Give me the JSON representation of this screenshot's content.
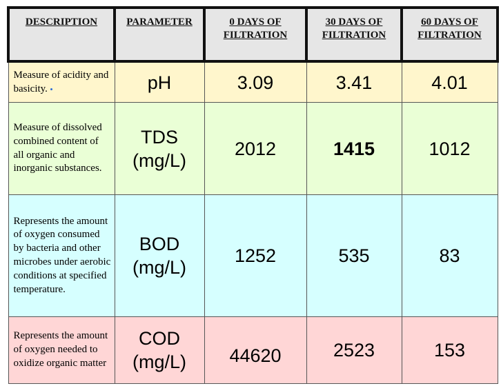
{
  "table": {
    "headers": [
      "DESCRIPTION",
      "PARAMETER",
      "0 DAYS OF FILTRATION",
      "30 DAYS OF FILTRATION",
      "60 DAYS OF FILTRATION"
    ],
    "rows": [
      {
        "description": "Measure of acidity and basicity.",
        "parameter_line1": "pH",
        "parameter_line2": "",
        "day0": "3.09",
        "day30": "3.41",
        "day60": "4.01",
        "bg": "#fff6cc"
      },
      {
        "description": "Measure of dissolved combined content of all organic and inorganic substances.",
        "parameter_line1": "TDS",
        "parameter_line2": "(mg/L)",
        "day0": "2012",
        "day30": "1415",
        "day60": "1012",
        "bg": "#eaffd6"
      },
      {
        "description": "Represents the amount of oxygen consumed by bacteria and other microbes under aerobic conditions at specified temperature.",
        "parameter_line1": "BOD",
        "parameter_line2": "(mg/L)",
        "day0": "1252",
        "day30": "535",
        "day60": "83",
        "bg": "#d6ffff"
      },
      {
        "description": "Represents the amount of oxygen needed to oxidize organic matter",
        "parameter_line1": "COD",
        "parameter_line2": "(mg/L)",
        "day0": "44620",
        "day30": "2523",
        "day60": "153",
        "bg": "#ffd6d6"
      }
    ]
  }
}
